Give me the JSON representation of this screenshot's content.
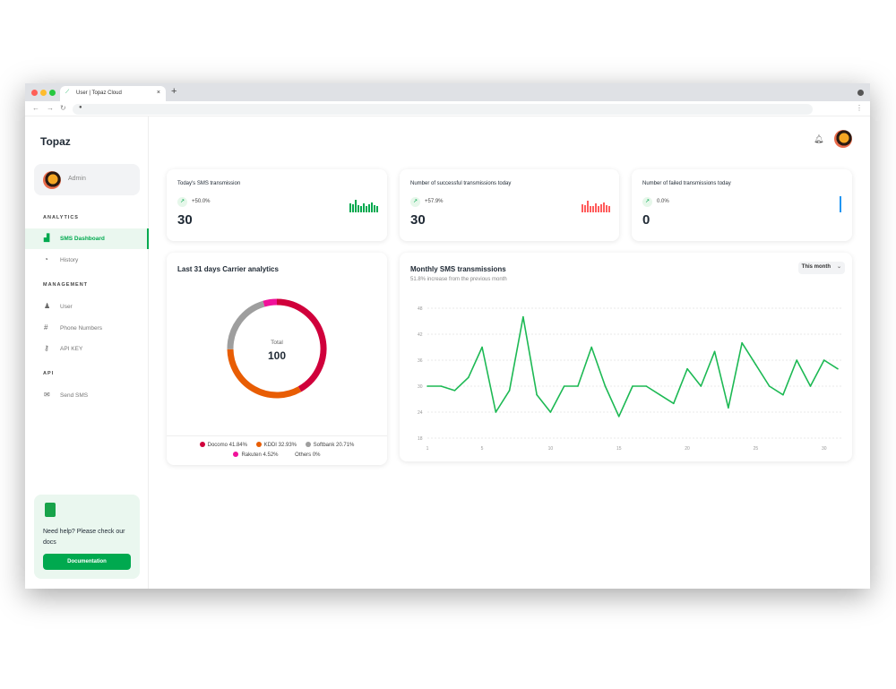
{
  "browser": {
    "tab_title": "User | Topaz Cloud",
    "new_tab": "+",
    "tab_close": "×"
  },
  "sidebar": {
    "logo": "Topaz",
    "account": "Admin",
    "sections": [
      {
        "label": "ANALYTICS",
        "items": [
          {
            "label": "SMS Dashboard",
            "icon": "chart-icon",
            "active": true
          },
          {
            "label": "History",
            "icon": "gauge-icon"
          }
        ]
      },
      {
        "label": "MANAGEMENT",
        "items": [
          {
            "label": "User",
            "icon": "user-icon"
          },
          {
            "label": "Phone Numbers",
            "icon": "hash-icon"
          },
          {
            "label": "API KEY",
            "icon": "key-icon"
          }
        ]
      },
      {
        "label": "API",
        "items": [
          {
            "label": "Send SMS",
            "icon": "mail-icon"
          }
        ]
      }
    ],
    "help": {
      "text": "Need help? Please check our docs",
      "button": "Documentation"
    }
  },
  "stats": [
    {
      "title": "Today's SMS transmission",
      "change": "+50.0%",
      "value": "30",
      "color": "#00a94f"
    },
    {
      "title": "Number of successful transmissions today",
      "change": "+57.9%",
      "value": "30",
      "color": "#ff5c5c"
    },
    {
      "title": "Number of failed transmissions today",
      "change": "0.0%",
      "value": "0",
      "color": "#2196f3"
    }
  ],
  "carrier": {
    "title": "Last 31 days Carrier analytics",
    "total_label": "Total",
    "total": "100",
    "legend": [
      {
        "label": "Docomo 41.84%",
        "value": 41.84,
        "color": "#d0003b"
      },
      {
        "label": "KDDI 32.93%",
        "value": 32.93,
        "color": "#e85d04"
      },
      {
        "label": "Softbank 20.71%",
        "value": 20.71,
        "color": "#9e9e9e"
      },
      {
        "label": "Rakuten 4.52%",
        "value": 4.52,
        "color": "#f0119a"
      },
      {
        "label": "Others 0%",
        "value": 0,
        "color": "#ffffff"
      }
    ]
  },
  "monthly": {
    "title": "Monthly SMS transmissions",
    "subtitle": "51.8% increase from the previous month",
    "period": "This month"
  },
  "chart_data": {
    "type": "line",
    "color": "#1db954",
    "grid": true,
    "x": [
      1,
      2,
      3,
      4,
      5,
      6,
      7,
      8,
      9,
      10,
      11,
      12,
      13,
      14,
      15,
      16,
      17,
      18,
      19,
      20,
      21,
      22,
      23,
      24,
      25,
      26,
      27,
      28,
      29,
      30,
      31
    ],
    "values": [
      30,
      30,
      29,
      32,
      39,
      24,
      29,
      46,
      28,
      24,
      30,
      30,
      39,
      30,
      23,
      30,
      30,
      28,
      26,
      34,
      30,
      38,
      25,
      40,
      35,
      30,
      28,
      36,
      30,
      36,
      34
    ],
    "xticks": [
      1,
      5,
      10,
      15,
      20,
      25,
      30
    ],
    "yticks": [
      48,
      42,
      36,
      30,
      24,
      18
    ],
    "ylim": [
      18,
      48
    ]
  }
}
